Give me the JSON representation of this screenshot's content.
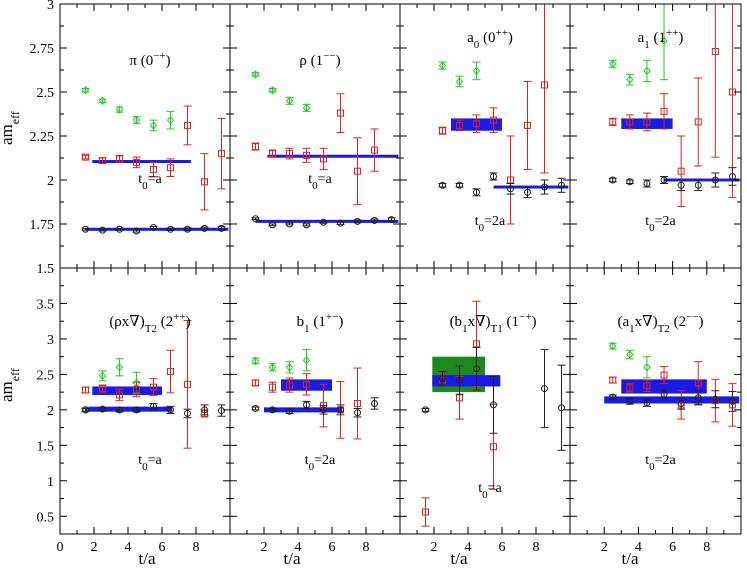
{
  "chart_data": {
    "type": "scatter",
    "ylabel_main": "am",
    "ylabel_sub": "eff",
    "xlabel": "t/a",
    "colors": {
      "green": "#22cc22",
      "red": "#dd2222",
      "black": "#222222",
      "fit": "#1a1ae6",
      "band_green": "#1e8a1e",
      "band_blue": "#1a1ae6"
    },
    "top_yticks": [
      "1.5",
      "1.75",
      "2",
      "2.25",
      "2.5",
      "2.75",
      "3"
    ],
    "top_ylim": [
      1.5,
      3.0
    ],
    "bottom_yticks": [
      "0.5",
      "1",
      "1.5",
      "2",
      "2.5",
      "3",
      "3.5"
    ],
    "bottom_ylim": [
      0.25,
      4.0
    ],
    "xlim": [
      0,
      10
    ],
    "xtick_labels_first": [
      "0",
      "2",
      "4",
      "6",
      "8"
    ],
    "xtick_labels": [
      "2",
      "4",
      "6",
      "8"
    ],
    "panels": [
      {
        "row": 0,
        "col": 0,
        "label": "π (0",
        "label_sup": "−+",
        "label_tail": ")",
        "label_sub": "",
        "t0_main": "t",
        "t0_sub": "0",
        "t0_tail": "=a",
        "green": [
          [
            1.5,
            2.51,
            0.01
          ],
          [
            2.5,
            2.45,
            0.01
          ],
          [
            3.5,
            2.4,
            0.015
          ],
          [
            4.5,
            2.34,
            0.02
          ],
          [
            5.5,
            2.31,
            0.03
          ],
          [
            6.5,
            2.34,
            0.05
          ]
        ],
        "red": [
          [
            1.5,
            2.13,
            0.01
          ],
          [
            2.5,
            2.11,
            0.015
          ],
          [
            3.5,
            2.12,
            0.02
          ],
          [
            4.5,
            2.1,
            0.03
          ],
          [
            5.5,
            2.06,
            0.04
          ],
          [
            6.5,
            2.07,
            0.05
          ],
          [
            7.5,
            2.31,
            0.11
          ],
          [
            8.5,
            1.99,
            0.16
          ],
          [
            9.5,
            2.15,
            0.2
          ]
        ],
        "black": [
          [
            1.5,
            1.72,
            0.005
          ],
          [
            2.5,
            1.715,
            0.005
          ],
          [
            3.5,
            1.72,
            0.005
          ],
          [
            4.5,
            1.71,
            0.006
          ],
          [
            5.5,
            1.73,
            0.006
          ],
          [
            6.5,
            1.72,
            0.007
          ],
          [
            7.5,
            1.72,
            0.008
          ],
          [
            8.5,
            1.725,
            0.008
          ],
          [
            9.5,
            1.725,
            0.01
          ]
        ],
        "fits": [
          {
            "x0": 1.9,
            "x1": 7.7,
            "y": 2.105,
            "h": 0.012,
            "kind": "line"
          },
          {
            "x0": 1.5,
            "x1": 9.9,
            "y": 1.72,
            "h": 0.008,
            "kind": "line"
          }
        ]
      },
      {
        "row": 0,
        "col": 1,
        "label": "ρ (1",
        "label_sup": "−−",
        "label_tail": ")",
        "label_sub": "",
        "t0_main": "t",
        "t0_sub": "0",
        "t0_tail": "=a",
        "green": [
          [
            1.5,
            2.6,
            0.01
          ],
          [
            2.5,
            2.51,
            0.01
          ],
          [
            3.5,
            2.45,
            0.02
          ],
          [
            4.5,
            2.41,
            0.02
          ]
        ],
        "red": [
          [
            1.5,
            2.19,
            0.02
          ],
          [
            2.5,
            2.15,
            0.02
          ],
          [
            3.5,
            2.15,
            0.03
          ],
          [
            4.5,
            2.14,
            0.04
          ],
          [
            5.5,
            2.12,
            0.06
          ],
          [
            6.5,
            2.38,
            0.11
          ],
          [
            7.5,
            2.05,
            0.19
          ],
          [
            8.5,
            2.17,
            0.12
          ]
        ],
        "black": [
          [
            1.5,
            1.78,
            0.005
          ],
          [
            2.5,
            1.745,
            0.005
          ],
          [
            3.5,
            1.75,
            0.005
          ],
          [
            4.5,
            1.745,
            0.006
          ],
          [
            5.5,
            1.76,
            0.006
          ],
          [
            6.5,
            1.755,
            0.007
          ],
          [
            7.5,
            1.765,
            0.008
          ],
          [
            8.5,
            1.77,
            0.008
          ],
          [
            9.5,
            1.775,
            0.01
          ]
        ],
        "fits": [
          {
            "x0": 2.2,
            "x1": 9.9,
            "y": 2.135,
            "h": 0.012,
            "kind": "line"
          },
          {
            "x0": 1.5,
            "x1": 9.9,
            "y": 1.765,
            "h": 0.008,
            "kind": "line"
          }
        ]
      },
      {
        "row": 0,
        "col": 2,
        "label": "a",
        "label_sub": "0",
        "label_mid": " (0",
        "label_sup": "++",
        "label_tail": ")",
        "t0_main": "t",
        "t0_sub": "0",
        "t0_tail": "=2a",
        "green": [
          [
            2.5,
            2.65,
            0.02
          ],
          [
            3.5,
            2.56,
            0.03
          ],
          [
            4.5,
            2.62,
            0.05
          ]
        ],
        "red": [
          [
            2.5,
            2.28,
            0.02
          ],
          [
            3.5,
            2.31,
            0.03
          ],
          [
            4.5,
            2.32,
            0.05
          ],
          [
            5.5,
            2.34,
            0.07
          ],
          [
            6.5,
            2.0,
            0.25
          ],
          [
            7.5,
            2.31,
            0.25
          ],
          [
            8.5,
            2.54,
            0.5
          ]
        ],
        "black": [
          [
            2.5,
            1.97,
            0.01
          ],
          [
            3.5,
            1.97,
            0.01
          ],
          [
            4.5,
            1.93,
            0.02
          ],
          [
            5.5,
            2.02,
            0.02
          ],
          [
            6.5,
            1.95,
            0.03
          ],
          [
            7.5,
            1.93,
            0.03
          ],
          [
            8.5,
            1.96,
            0.04
          ],
          [
            9.5,
            1.97,
            0.04
          ]
        ],
        "fits": [
          {
            "x0": 3.0,
            "x1": 6.0,
            "y": 2.315,
            "h": 0.035,
            "kind": "band_blue"
          },
          {
            "x0": 5.5,
            "x1": 9.9,
            "y": 1.96,
            "h": 0.012,
            "kind": "line"
          }
        ]
      },
      {
        "row": 0,
        "col": 3,
        "label": "a",
        "label_sub": "1",
        "label_mid": " (1",
        "label_sup": "++",
        "label_tail": ")",
        "t0_main": "t",
        "t0_sub": "0",
        "t0_tail": "=2a",
        "green": [
          [
            2.5,
            2.66,
            0.02
          ],
          [
            3.5,
            2.57,
            0.03
          ],
          [
            4.5,
            2.62,
            0.06
          ],
          [
            5.5,
            2.79,
            0.22
          ]
        ],
        "red": [
          [
            2.5,
            2.33,
            0.02
          ],
          [
            3.5,
            2.33,
            0.04
          ],
          [
            4.5,
            2.33,
            0.05
          ],
          [
            5.5,
            2.39,
            0.1
          ],
          [
            6.5,
            2.05,
            0.2
          ],
          [
            7.5,
            2.33,
            0.25
          ],
          [
            8.5,
            2.73,
            0.6
          ],
          [
            9.5,
            2.5,
            0.6
          ]
        ],
        "black": [
          [
            2.5,
            2.0,
            0.01
          ],
          [
            3.5,
            1.99,
            0.01
          ],
          [
            4.5,
            1.98,
            0.02
          ],
          [
            5.5,
            2.0,
            0.02
          ],
          [
            6.5,
            1.97,
            0.03
          ],
          [
            7.5,
            1.97,
            0.03
          ],
          [
            8.5,
            2.0,
            0.04
          ],
          [
            9.5,
            2.02,
            0.05
          ]
        ],
        "fits": [
          {
            "x0": 3.0,
            "x1": 6.0,
            "y": 2.32,
            "h": 0.03,
            "kind": "band_blue"
          },
          {
            "x0": 5.5,
            "x1": 9.9,
            "y": 2.0,
            "h": 0.012,
            "kind": "line"
          }
        ]
      },
      {
        "row": 1,
        "col": 0,
        "label": "(ρx∇)",
        "label_sub": "T2",
        "label_mid": " (2",
        "label_sup": "++",
        "label_tail": ")",
        "t0_main": "t",
        "t0_sub": "0",
        "t0_tail": "=a",
        "green": [
          [
            1.5,
            2.0,
            0.03
          ],
          [
            2.5,
            2.48,
            0.07
          ],
          [
            3.5,
            2.6,
            0.12
          ],
          [
            4.5,
            2.38,
            0.15
          ]
        ],
        "red": [
          [
            1.5,
            2.28,
            0.04
          ],
          [
            2.5,
            2.3,
            0.05
          ],
          [
            3.5,
            2.21,
            0.08
          ],
          [
            4.5,
            2.29,
            0.1
          ],
          [
            5.5,
            2.32,
            0.12
          ],
          [
            6.5,
            2.54,
            0.3
          ],
          [
            7.5,
            2.36,
            0.9
          ],
          [
            8.5,
            1.95,
            0.05
          ]
        ],
        "black": [
          [
            1.5,
            2.0,
            0.02
          ],
          [
            2.5,
            2.01,
            0.02
          ],
          [
            3.5,
            2.0,
            0.03
          ],
          [
            4.5,
            2.0,
            0.03
          ],
          [
            5.5,
            2.05,
            0.04
          ],
          [
            6.5,
            2.0,
            0.05
          ],
          [
            7.5,
            1.95,
            0.06
          ],
          [
            8.5,
            2.0,
            0.07
          ],
          [
            9.5,
            1.99,
            0.08
          ]
        ],
        "fits": [
          {
            "x0": 1.9,
            "x1": 6.0,
            "y": 2.27,
            "h": 0.06,
            "kind": "band_blue"
          },
          {
            "x0": 1.5,
            "x1": 6.6,
            "y": 2.01,
            "h": 0.03,
            "kind": "band_blue"
          }
        ]
      },
      {
        "row": 1,
        "col": 1,
        "label": "b",
        "label_sub": "1",
        "label_mid": " (1",
        "label_sup": "+−",
        "label_tail": ")",
        "t0_main": "t",
        "t0_sub": "0",
        "t0_tail": "=2a",
        "green": [
          [
            1.5,
            2.69,
            0.04
          ],
          [
            2.5,
            2.6,
            0.05
          ],
          [
            3.5,
            2.6,
            0.08
          ],
          [
            4.5,
            2.7,
            0.15
          ]
        ],
        "red": [
          [
            1.5,
            2.38,
            0.04
          ],
          [
            2.5,
            2.32,
            0.07
          ],
          [
            3.5,
            2.35,
            0.1
          ],
          [
            4.5,
            2.36,
            0.15
          ],
          [
            5.5,
            2.06,
            0.3
          ],
          [
            6.5,
            2.0,
            0.4
          ],
          [
            7.5,
            2.09,
            0.5
          ]
        ],
        "black": [
          [
            1.5,
            2.02,
            0.02
          ],
          [
            2.5,
            2.0,
            0.02
          ],
          [
            3.5,
            1.98,
            0.03
          ],
          [
            4.5,
            2.07,
            0.05
          ],
          [
            5.5,
            2.0,
            0.06
          ],
          [
            6.5,
            2.0,
            0.07
          ],
          [
            7.5,
            1.96,
            0.06
          ],
          [
            8.5,
            2.09,
            0.08
          ]
        ],
        "fits": [
          {
            "x0": 3.0,
            "x1": 6.0,
            "y": 2.35,
            "h": 0.08,
            "kind": "band_blue"
          },
          {
            "x0": 2.0,
            "x1": 6.6,
            "y": 2.0,
            "h": 0.03,
            "kind": "band_blue"
          }
        ]
      },
      {
        "row": 1,
        "col": 2,
        "label": "(b",
        "label_sub": "1",
        "label_mid": "x∇)",
        "label_sub2": "T1",
        "label_mid2": " (1",
        "label_sup": "−+",
        "label_tail": ")",
        "t0_main": "t",
        "t0_sub": "0",
        "t0_tail": "=a",
        "green": [],
        "red": [
          [
            1.5,
            0.56,
            0.2
          ],
          [
            2.5,
            2.42,
            0.08
          ],
          [
            3.5,
            2.17,
            0.3
          ],
          [
            4.5,
            2.93,
            0.6
          ],
          [
            5.5,
            1.48,
            0.6
          ]
        ],
        "black": [
          [
            1.5,
            2.0,
            0.02
          ],
          [
            2.5,
            2.44,
            0.1
          ],
          [
            3.5,
            2.42,
            0.2
          ],
          [
            4.5,
            2.58,
            0.3
          ],
          [
            5.5,
            2.07,
            0.4
          ],
          [
            8.5,
            2.3,
            0.55
          ],
          [
            9.5,
            2.03,
            0.6
          ]
        ],
        "fits": [
          {
            "x0": 1.9,
            "x1": 5.0,
            "y": 2.5,
            "h": 0.25,
            "kind": "band_green"
          },
          {
            "x0": 1.9,
            "x1": 5.9,
            "y": 2.41,
            "h": 0.08,
            "kind": "band_blue"
          }
        ]
      },
      {
        "row": 1,
        "col": 3,
        "label": "(a",
        "label_sub": "1",
        "label_mid": "x∇)",
        "label_sub2": "T2",
        "label_mid2": " (2",
        "label_sup": "−−",
        "label_tail": ")",
        "t0_main": "t",
        "t0_sub": "0",
        "t0_tail": "=2a",
        "green": [
          [
            2.5,
            2.9,
            0.04
          ],
          [
            3.5,
            2.78,
            0.06
          ],
          [
            4.5,
            2.6,
            0.15
          ]
        ],
        "red": [
          [
            2.5,
            2.42,
            0.04
          ],
          [
            3.5,
            2.31,
            0.06
          ],
          [
            4.5,
            2.34,
            0.08
          ],
          [
            5.5,
            2.49,
            0.12
          ],
          [
            6.5,
            2.07,
            0.2
          ],
          [
            7.5,
            2.38,
            0.3
          ],
          [
            8.5,
            2.13,
            0.3
          ],
          [
            9.5,
            2.07,
            0.3
          ]
        ],
        "black": [
          [
            2.5,
            2.18,
            0.03
          ],
          [
            3.5,
            2.12,
            0.04
          ],
          [
            4.5,
            2.1,
            0.05
          ],
          [
            5.5,
            2.22,
            0.06
          ],
          [
            6.5,
            2.09,
            0.08
          ],
          [
            7.5,
            2.17,
            0.1
          ],
          [
            8.5,
            2.15,
            0.12
          ],
          [
            9.5,
            2.12,
            0.14
          ]
        ],
        "fits": [
          {
            "x0": 3.0,
            "x1": 8.0,
            "y": 2.33,
            "h": 0.1,
            "kind": "band_blue"
          },
          {
            "x0": 2.0,
            "x1": 9.9,
            "y": 2.14,
            "h": 0.05,
            "kind": "band_blue"
          }
        ]
      }
    ]
  }
}
